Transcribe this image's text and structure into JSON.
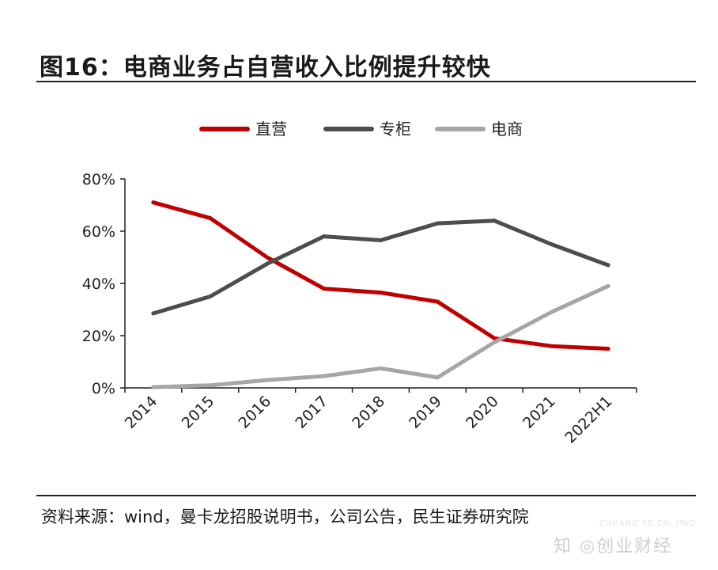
{
  "header": {
    "title": "图16：电商业务占自营收入比例提升较快"
  },
  "footer": {
    "source": "资料来源：wind，曼卡龙招股说明书，公司公告，民生证券研究院"
  },
  "watermark": {
    "text": "知 ◎创业财经",
    "text_en": "CHUANG YE CAI JING"
  },
  "chart_data": {
    "type": "line",
    "categories": [
      "2014",
      "2015",
      "2016",
      "2017",
      "2018",
      "2019",
      "2020",
      "2021",
      "2022H1"
    ],
    "series": [
      {
        "name": "直营",
        "color": "#c00000",
        "values": [
          71,
          65,
          50,
          38,
          36.5,
          33,
          19,
          16,
          15
        ]
      },
      {
        "name": "专柜",
        "color": "#4d4d4d",
        "values": [
          28.5,
          35,
          47.5,
          58,
          56.5,
          63,
          64,
          55,
          47
        ]
      },
      {
        "name": "电商",
        "color": "#a6a6a6",
        "values": [
          0.3,
          1,
          3,
          4.5,
          7.5,
          4,
          17.5,
          29,
          39
        ]
      }
    ],
    "ylim": [
      0,
      80
    ],
    "yticks": [
      "0%",
      "20%",
      "40%",
      "60%",
      "80%"
    ],
    "legend_position": "top-center",
    "grid": false
  }
}
